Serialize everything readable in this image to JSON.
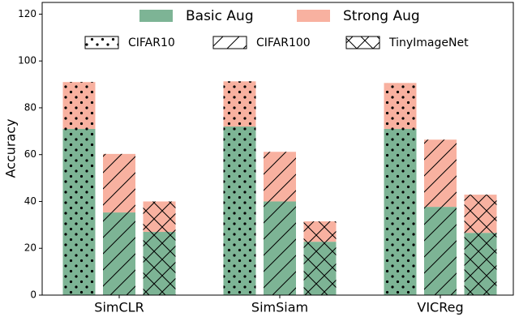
{
  "chart_data": {
    "type": "bar",
    "stacked": true,
    "y_label": "Accuracy",
    "categories": [
      "SimCLR",
      "SimSiam",
      "VICReg"
    ],
    "datasets": [
      {
        "name": "CIFAR10",
        "hatch": "dots"
      },
      {
        "name": "CIFAR100",
        "hatch": "slash"
      },
      {
        "name": "TinyImageNet",
        "hatch": "cross"
      }
    ],
    "series": [
      {
        "name": "Basic Aug",
        "color": "#7db495",
        "values": [
          [
            71,
            35.3,
            27
          ],
          [
            72,
            40,
            22.8
          ],
          [
            71,
            37.7,
            26.6
          ]
        ]
      },
      {
        "name": "Strong Aug",
        "color": "#f8b1a0",
        "values": [
          [
            20,
            25,
            13
          ],
          [
            19.3,
            21.2,
            8.7
          ],
          [
            19.6,
            28.7,
            16.3
          ]
        ]
      }
    ],
    "ylim": [
      0,
      125
    ],
    "yticks": [
      0,
      20,
      40,
      60,
      80,
      100,
      120
    ]
  }
}
